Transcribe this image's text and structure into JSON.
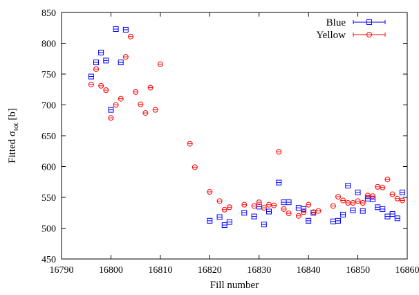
{
  "chart_data": {
    "type": "scatter",
    "xlabel": "Fill number",
    "ylabel_main": "Fitted σ",
    "ylabel_sub": "tot",
    "ylabel_unit": " [b]",
    "xlim": [
      16790,
      16860
    ],
    "ylim": [
      450,
      850
    ],
    "x_ticks": [
      16790,
      16800,
      16810,
      16820,
      16830,
      16840,
      16850,
      16860
    ],
    "y_ticks": [
      450,
      500,
      550,
      600,
      650,
      700,
      750,
      800,
      850
    ],
    "grid": false,
    "legend_position": "top-right",
    "series": [
      {
        "name": "Blue",
        "color": "#0000ff",
        "marker": "square",
        "points": [
          [
            16796,
            746
          ],
          [
            16797,
            769
          ],
          [
            16798,
            785
          ],
          [
            16799,
            772
          ],
          [
            16800,
            692
          ],
          [
            16801,
            823
          ],
          [
            16802,
            769
          ],
          [
            16803,
            822
          ],
          [
            16820,
            512
          ],
          [
            16822,
            518
          ],
          [
            16823,
            505
          ],
          [
            16824,
            510
          ],
          [
            16827,
            525
          ],
          [
            16829,
            519
          ],
          [
            16830,
            535
          ],
          [
            16831,
            506
          ],
          [
            16832,
            527
          ],
          [
            16834,
            574
          ],
          [
            16835,
            542
          ],
          [
            16836,
            542
          ],
          [
            16838,
            533
          ],
          [
            16839,
            531
          ],
          [
            16840,
            512
          ],
          [
            16841,
            525
          ],
          [
            16845,
            511
          ],
          [
            16846,
            512
          ],
          [
            16847,
            522
          ],
          [
            16848,
            569
          ],
          [
            16849,
            529
          ],
          [
            16850,
            558
          ],
          [
            16851,
            528
          ],
          [
            16852,
            548
          ],
          [
            16853,
            547
          ],
          [
            16854,
            534
          ],
          [
            16855,
            531
          ],
          [
            16856,
            519
          ],
          [
            16857,
            523
          ],
          [
            16858,
            516
          ],
          [
            16859,
            558
          ]
        ]
      },
      {
        "name": "Yellow",
        "color": "#ff0000",
        "marker": "circle",
        "points": [
          [
            16796,
            733
          ],
          [
            16797,
            758
          ],
          [
            16798,
            731
          ],
          [
            16799,
            724
          ],
          [
            16800,
            679
          ],
          [
            16801,
            700
          ],
          [
            16802,
            710
          ],
          [
            16803,
            778
          ],
          [
            16804,
            811
          ],
          [
            16805,
            721
          ],
          [
            16806,
            701
          ],
          [
            16807,
            687
          ],
          [
            16808,
            728
          ],
          [
            16809,
            692
          ],
          [
            16810,
            766
          ],
          [
            16816,
            637
          ],
          [
            16817,
            599
          ],
          [
            16820,
            559
          ],
          [
            16822,
            544
          ],
          [
            16823,
            530
          ],
          [
            16824,
            534
          ],
          [
            16827,
            538
          ],
          [
            16829,
            536
          ],
          [
            16830,
            542
          ],
          [
            16831,
            533
          ],
          [
            16832,
            538
          ],
          [
            16833,
            537
          ],
          [
            16834,
            624
          ],
          [
            16835,
            531
          ],
          [
            16836,
            524
          ],
          [
            16838,
            520
          ],
          [
            16839,
            526
          ],
          [
            16840,
            538
          ],
          [
            16841,
            526
          ],
          [
            16842,
            528
          ],
          [
            16845,
            536
          ],
          [
            16846,
            551
          ],
          [
            16847,
            545
          ],
          [
            16848,
            541
          ],
          [
            16849,
            541
          ],
          [
            16850,
            544
          ],
          [
            16851,
            541
          ],
          [
            16852,
            553
          ],
          [
            16853,
            552
          ],
          [
            16854,
            567
          ],
          [
            16855,
            566
          ],
          [
            16856,
            579
          ],
          [
            16857,
            555
          ],
          [
            16858,
            548
          ],
          [
            16859,
            545
          ]
        ]
      }
    ]
  }
}
